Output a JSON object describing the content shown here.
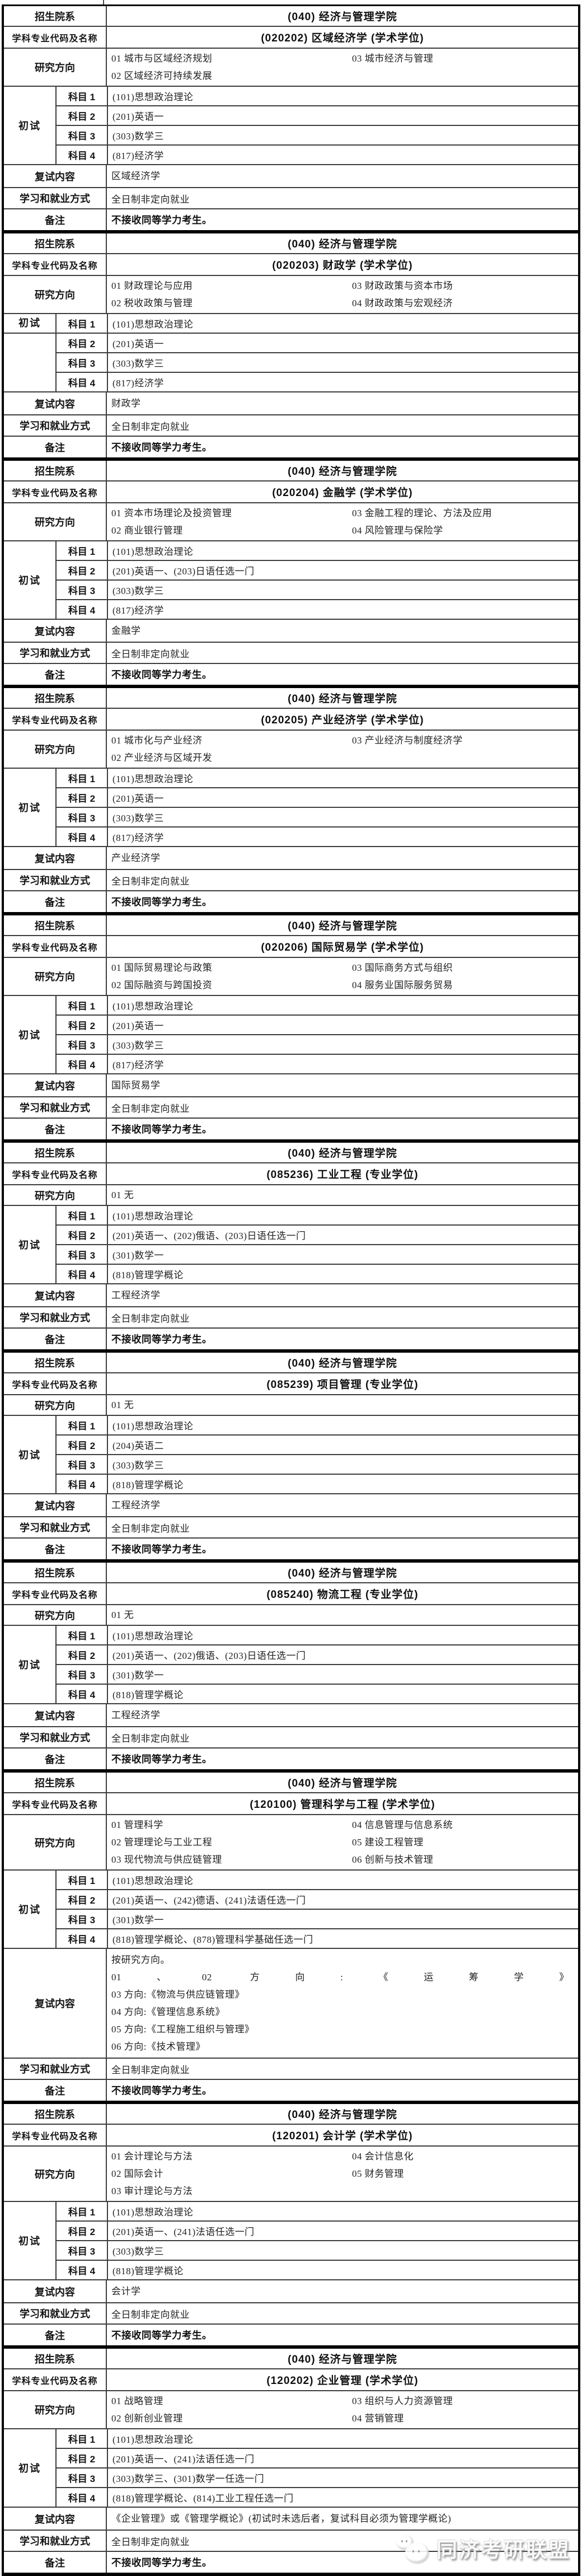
{
  "row_labels": {
    "department": "招生院系",
    "major": "学科专业代码及名称",
    "directions": "研究方向",
    "initial_exam": "初试",
    "subjects": [
      "科目 1",
      "科目 2",
      "科目 3",
      "科目 4"
    ],
    "retest": "复试内容",
    "study_mode": "学习和就业方式",
    "remarks": "备注"
  },
  "blocks": [
    {
      "department": "(040) 经济与管理学院",
      "major": "(020202) 区域经济学 (学术学位)",
      "directions_left": [
        "01 城市与区域经济规划",
        "02 区域经济可持续发展"
      ],
      "directions_right": [
        "03 城市经济与管理"
      ],
      "subjects": [
        "(101)思想政治理论",
        "(201)英语一",
        "(303)数学三",
        "(817)经济学"
      ],
      "retest_lines": [
        "区域经济学"
      ],
      "study_mode": "全日制非定向就业",
      "remarks": "不接收同等学力考生。"
    },
    {
      "department": "(040) 经济与管理学院",
      "major": "(020203) 财政学 (学术学位)",
      "directions_left": [
        "01 财政理论与应用",
        "02 税收政策与管理"
      ],
      "directions_right": [
        "03 财政政策与资本市场",
        "04 财政政策与宏观经济"
      ],
      "subjects": [
        "(101)思想政治理论",
        "(201)英语一",
        "(303)数学三",
        "(817)经济学"
      ],
      "retest_lines": [
        "财政学"
      ],
      "exam_label_top": true,
      "study_mode": "全日制非定向就业",
      "remarks": "不接收同等学力考生。"
    },
    {
      "department": "(040) 经济与管理学院",
      "major": "(020204) 金融学 (学术学位)",
      "directions_left": [
        "01 资本市场理论及投资管理",
        "02 商业银行管理"
      ],
      "directions_right": [
        "03 金融工程的理论、方法及应用",
        "04 风险管理与保险学"
      ],
      "subjects": [
        "(101)思想政治理论",
        "(201)英语一、(203)日语任选一门",
        "(303)数学三",
        "(817)经济学"
      ],
      "retest_lines": [
        "金融学"
      ],
      "study_mode": "全日制非定向就业",
      "remarks": "不接收同等学力考生。"
    },
    {
      "department": "(040) 经济与管理学院",
      "major": "(020205) 产业经济学 (学术学位)",
      "directions_left": [
        "01 城市化与产业经济",
        "02 产业经济与区域开发"
      ],
      "directions_right": [
        "03 产业经济与制度经济学"
      ],
      "subjects": [
        "(101)思想政治理论",
        "(201)英语一",
        "(303)数学三",
        "(817)经济学"
      ],
      "retest_lines": [
        "产业经济学"
      ],
      "study_mode": "全日制非定向就业",
      "remarks": "不接收同等学力考生。"
    },
    {
      "department": "(040) 经济与管理学院",
      "major": "(020206) 国际贸易学 (学术学位)",
      "directions_left": [
        "01 国际贸易理论与政策",
        "02 国际融资与跨国投资"
      ],
      "directions_right": [
        "03 国际商务方式与组织",
        "04 服务业国际服务贸易"
      ],
      "subjects": [
        "(101)思想政治理论",
        "(201)英语一",
        "(303)数学三",
        "(817)经济学"
      ],
      "retest_lines": [
        "国际贸易学"
      ],
      "study_mode": "全日制非定向就业",
      "remarks": "不接收同等学力考生。"
    },
    {
      "department": "(040) 经济与管理学院",
      "major": "(085236) 工业工程 (专业学位)",
      "directions_left": [
        "01 无"
      ],
      "directions_right": [],
      "subjects": [
        "(101)思想政治理论",
        "(201)英语一、(202)俄语、(203)日语任选一门",
        "(301)数学一",
        "(818)管理学概论"
      ],
      "retest_lines": [
        "工程经济学"
      ],
      "study_mode": "全日制非定向就业",
      "remarks": "不接收同等学力考生。"
    },
    {
      "department": "(040) 经济与管理学院",
      "major": "(085239) 项目管理 (专业学位)",
      "directions_left": [
        "01 无"
      ],
      "directions_right": [],
      "subjects": [
        "(101)思想政治理论",
        "(204)英语二",
        "(303)数学三",
        "(818)管理学概论"
      ],
      "retest_lines": [
        "工程经济学"
      ],
      "study_mode": "全日制非定向就业",
      "remarks": "不接收同等学力考生。"
    },
    {
      "department": "(040) 经济与管理学院",
      "major": "(085240) 物流工程 (专业学位)",
      "directions_left": [
        "01 无"
      ],
      "directions_right": [],
      "subjects": [
        "(101)思想政治理论",
        "(201)英语一、(202)俄语、(203)日语任选一门",
        "(301)数学一",
        "(818)管理学概论"
      ],
      "retest_lines": [
        "工程经济学"
      ],
      "study_mode": "全日制非定向就业",
      "remarks": "不接收同等学力考生。"
    },
    {
      "department": "(040) 经济与管理学院",
      "major": "(120100) 管理科学与工程 (学术学位)",
      "directions_left": [
        "01 管理科学",
        "02 管理理论与工业工程",
        "03 现代物流与供应链管理"
      ],
      "directions_right": [
        "04 信息管理与信息系统",
        "05 建设工程管理",
        "06 创新与技术管理"
      ],
      "subjects": [
        "(101)思想政治理论",
        "(201)英语一、(242)德语、(241)法语任选一门",
        "(301)数学一",
        "(818)管理学概论、(878)管理科学基础任选一门"
      ],
      "retest_lines": [
        "按研究方向。",
        "01、02 方向:《运筹学》",
        "03 方向:《物流与供应链管理》",
        "04 方向:《管理信息系统》",
        "05 方向:《工程施工组织与管理》",
        "06 方向:《技术管理》"
      ],
      "retest_justify_index": 1,
      "study_mode": "全日制非定向就业",
      "remarks": "不接收同等学力考生。"
    },
    {
      "department": "(040) 经济与管理学院",
      "major": "(120201) 会计学 (学术学位)",
      "directions_left": [
        "01 会计理论与方法",
        "02 国际会计",
        "03 审计理论与方法"
      ],
      "directions_right": [
        "04 会计信息化",
        "05 财务管理"
      ],
      "subjects": [
        "(101)思想政治理论",
        "(201)英语一、(241)法语任选一门",
        "(303)数学三",
        "(818)管理学概论"
      ],
      "retest_lines": [
        "会计学"
      ],
      "study_mode": "全日制非定向就业",
      "remarks": "不接收同等学力考生。"
    },
    {
      "department": "(040) 经济与管理学院",
      "major": "(120202) 企业管理 (学术学位)",
      "directions_left": [
        "01 战略管理",
        "02 创新创业管理"
      ],
      "directions_right": [
        "03 组织与人力资源管理",
        "04 营销管理"
      ],
      "subjects": [
        "(101)思想政治理论",
        "(201)英语一、(241)法语任选一门",
        "(303)数学三、(301)数学一任选一门",
        "(818)管理学概论、(814)工业工程任选一门"
      ],
      "retest_lines": [
        "《企业管理》或《管理学概论》(初试时未选后者，复试科目必须为管理学概论)"
      ],
      "study_mode": "全日制非定向就业",
      "remarks": "不接收同等学力考生。"
    }
  ],
  "watermark": {
    "text": "同济考研联盟"
  },
  "colors": {
    "border_thick": "#000000",
    "border_thin": "#3d3d3d",
    "text": "#1b1b1b"
  }
}
